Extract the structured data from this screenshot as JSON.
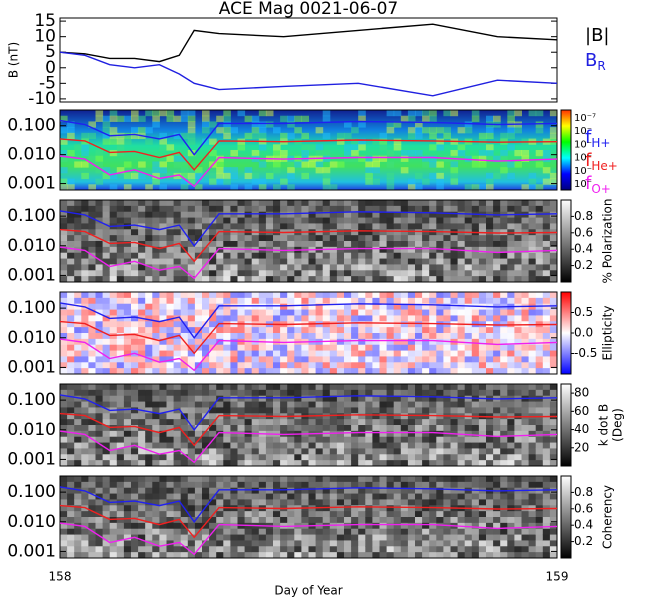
{
  "chart_data": [
    {
      "type": "line",
      "title": "ACE Mag 0021-06-07",
      "ylabel": "B (nT)",
      "xlim": [
        158,
        159
      ],
      "ylim": [
        -11,
        16
      ],
      "yticks": [
        15,
        10,
        5,
        0,
        -5,
        -10
      ],
      "series": [
        {
          "name": "|B|",
          "color": "#000000",
          "x": [
            158,
            158.05,
            158.1,
            158.15,
            158.2,
            158.24,
            158.27,
            158.32,
            158.45,
            158.6,
            158.75,
            158.88,
            159
          ],
          "values": [
            5,
            4.5,
            3,
            3,
            2,
            4,
            12,
            11,
            10,
            12,
            14,
            10,
            9
          ]
        },
        {
          "name": "B",
          "sub": "R",
          "color": "#2020e0",
          "x": [
            158,
            158.05,
            158.1,
            158.15,
            158.2,
            158.24,
            158.27,
            158.32,
            158.45,
            158.6,
            158.75,
            158.88,
            159
          ],
          "values": [
            5,
            4,
            1,
            0,
            1,
            -2,
            -5,
            -7,
            -6,
            -5,
            -9,
            -4,
            -5
          ]
        }
      ]
    },
    {
      "type": "line",
      "background": "spectrum",
      "colormap": "spectrum",
      "colorbar_labels": [
        "10⁻⁷",
        "10⁻",
        "10⁻",
        "10⁻",
        "10⁻",
        "10⁻"
      ],
      "log": true,
      "xlim": [
        158,
        159
      ],
      "ylim": [
        0.0006,
        0.35
      ],
      "yticks": [
        {
          "value": 0.1,
          "label": "0.100"
        },
        {
          "value": 0.01,
          "label": "0.010"
        },
        {
          "value": 0.001,
          "label": "0.001"
        }
      ],
      "series": [
        {
          "name": "f",
          "sub": "H+",
          "color": "#2020f0",
          "x": [
            158,
            158.05,
            158.1,
            158.15,
            158.2,
            158.24,
            158.27,
            158.32,
            158.45,
            158.6,
            158.75,
            158.88,
            159
          ],
          "values": [
            0.15,
            0.11,
            0.045,
            0.05,
            0.035,
            0.05,
            0.01,
            0.12,
            0.12,
            0.14,
            0.13,
            0.11,
            0.12
          ]
        },
        {
          "name": "f",
          "sub": "He+",
          "color": "#f02020",
          "x": [
            158,
            158.05,
            158.1,
            158.15,
            158.2,
            158.24,
            158.27,
            158.32,
            158.45,
            158.6,
            158.75,
            158.88,
            159
          ],
          "values": [
            0.035,
            0.03,
            0.012,
            0.013,
            0.008,
            0.012,
            0.003,
            0.03,
            0.028,
            0.032,
            0.03,
            0.027,
            0.028
          ]
        },
        {
          "name": "f",
          "sub": "O+",
          "color": "#f020f0",
          "x": [
            158,
            158.05,
            158.1,
            158.15,
            158.2,
            158.24,
            158.27,
            158.32,
            158.45,
            158.6,
            158.75,
            158.88,
            159
          ],
          "values": [
            0.009,
            0.007,
            0.002,
            0.003,
            0.0015,
            0.002,
            0.0008,
            0.008,
            0.007,
            0.008,
            0.008,
            0.006,
            0.007
          ]
        }
      ]
    },
    {
      "type": "line",
      "background": "gray",
      "colormap": "gray",
      "colorbar_title": "% Polarization",
      "clim": [
        0,
        1
      ],
      "cticks": [
        0.2,
        0.4,
        0.6,
        0.8
      ],
      "log": true,
      "xlim": [
        158,
        159
      ],
      "ylim": [
        0.0006,
        0.35
      ],
      "yticks": [
        {
          "value": 0.1,
          "label": "0.100"
        },
        {
          "value": 0.01,
          "label": "0.010"
        },
        {
          "value": 0.001,
          "label": "0.001"
        }
      ],
      "series": [
        {
          "color": "#2020f0",
          "x": [
            158,
            158.05,
            158.1,
            158.15,
            158.2,
            158.24,
            158.27,
            158.32,
            158.45,
            158.6,
            158.75,
            158.88,
            159
          ],
          "values": [
            0.15,
            0.11,
            0.045,
            0.05,
            0.035,
            0.05,
            0.01,
            0.12,
            0.12,
            0.14,
            0.13,
            0.11,
            0.12
          ]
        },
        {
          "color": "#f02020",
          "x": [
            158,
            158.05,
            158.1,
            158.15,
            158.2,
            158.24,
            158.27,
            158.32,
            158.45,
            158.6,
            158.75,
            158.88,
            159
          ],
          "values": [
            0.035,
            0.03,
            0.012,
            0.013,
            0.008,
            0.012,
            0.003,
            0.03,
            0.028,
            0.032,
            0.03,
            0.027,
            0.028
          ]
        },
        {
          "color": "#f020f0",
          "x": [
            158,
            158.05,
            158.1,
            158.15,
            158.2,
            158.24,
            158.27,
            158.32,
            158.45,
            158.6,
            158.75,
            158.88,
            159
          ],
          "values": [
            0.009,
            0.007,
            0.002,
            0.003,
            0.0015,
            0.002,
            0.0008,
            0.008,
            0.007,
            0.008,
            0.008,
            0.006,
            0.007
          ]
        }
      ]
    },
    {
      "type": "line",
      "background": "redblue",
      "colormap": "redblue",
      "colorbar_title": "Ellipticity",
      "clim": [
        -1,
        1
      ],
      "cticks": [
        0.5,
        {
          "value": 0,
          "label": "0.0"
        },
        -0.5
      ],
      "log": true,
      "xlim": [
        158,
        159
      ],
      "ylim": [
        0.0006,
        0.35
      ],
      "yticks": [
        {
          "value": 0.1,
          "label": "0.100"
        },
        {
          "value": 0.01,
          "label": "0.010"
        },
        {
          "value": 0.001,
          "label": "0.001"
        }
      ],
      "series": [
        {
          "color": "#2020f0",
          "x": [
            158,
            158.05,
            158.1,
            158.15,
            158.2,
            158.24,
            158.27,
            158.32,
            158.45,
            158.6,
            158.75,
            158.88,
            159
          ],
          "values": [
            0.15,
            0.11,
            0.045,
            0.05,
            0.035,
            0.05,
            0.01,
            0.12,
            0.12,
            0.14,
            0.13,
            0.11,
            0.12
          ]
        },
        {
          "color": "#f02020",
          "x": [
            158,
            158.05,
            158.1,
            158.15,
            158.2,
            158.24,
            158.27,
            158.32,
            158.45,
            158.6,
            158.75,
            158.88,
            159
          ],
          "values": [
            0.035,
            0.03,
            0.012,
            0.013,
            0.008,
            0.012,
            0.003,
            0.03,
            0.028,
            0.032,
            0.03,
            0.027,
            0.028
          ]
        },
        {
          "color": "#f020f0",
          "x": [
            158,
            158.05,
            158.1,
            158.15,
            158.2,
            158.24,
            158.27,
            158.32,
            158.45,
            158.6,
            158.75,
            158.88,
            159
          ],
          "values": [
            0.009,
            0.007,
            0.002,
            0.003,
            0.0015,
            0.002,
            0.0008,
            0.008,
            0.007,
            0.008,
            0.008,
            0.006,
            0.007
          ]
        }
      ]
    },
    {
      "type": "line",
      "background": "gray",
      "colormap": "gray",
      "colorbar_title": "k dot B",
      "colorbar_subtitle": "(Deg)",
      "clim": [
        0,
        90
      ],
      "cticks": [
        80,
        60,
        40,
        20
      ],
      "log": true,
      "xlim": [
        158,
        159
      ],
      "ylim": [
        0.0006,
        0.35
      ],
      "yticks": [
        {
          "value": 0.1,
          "label": "0.100"
        },
        {
          "value": 0.01,
          "label": "0.010"
        },
        {
          "value": 0.001,
          "label": "0.001"
        }
      ],
      "series": [
        {
          "color": "#2020f0",
          "x": [
            158,
            158.05,
            158.1,
            158.15,
            158.2,
            158.24,
            158.27,
            158.32,
            158.45,
            158.6,
            158.75,
            158.88,
            159
          ],
          "values": [
            0.15,
            0.11,
            0.045,
            0.05,
            0.035,
            0.05,
            0.01,
            0.12,
            0.12,
            0.14,
            0.13,
            0.11,
            0.12
          ]
        },
        {
          "color": "#f02020",
          "x": [
            158,
            158.05,
            158.1,
            158.15,
            158.2,
            158.24,
            158.27,
            158.32,
            158.45,
            158.6,
            158.75,
            158.88,
            159
          ],
          "values": [
            0.035,
            0.03,
            0.012,
            0.013,
            0.008,
            0.012,
            0.003,
            0.03,
            0.028,
            0.032,
            0.03,
            0.027,
            0.028
          ]
        },
        {
          "color": "#f020f0",
          "x": [
            158,
            158.05,
            158.1,
            158.15,
            158.2,
            158.24,
            158.27,
            158.32,
            158.45,
            158.6,
            158.75,
            158.88,
            159
          ],
          "values": [
            0.009,
            0.007,
            0.002,
            0.003,
            0.0015,
            0.002,
            0.0008,
            0.008,
            0.007,
            0.008,
            0.008,
            0.006,
            0.007
          ]
        }
      ]
    },
    {
      "type": "line",
      "background": "gray",
      "colormap": "gray",
      "colorbar_title": "Coherency",
      "clim": [
        0,
        1
      ],
      "cticks": [
        0.2,
        0.4,
        0.6,
        0.8
      ],
      "log": true,
      "xlim": [
        158,
        159
      ],
      "xticks": [
        158,
        159
      ],
      "xlabel": "Day of Year",
      "ylim": [
        0.0006,
        0.35
      ],
      "yticks": [
        {
          "value": 0.1,
          "label": "0.100"
        },
        {
          "value": 0.01,
          "label": "0.010"
        },
        {
          "value": 0.001,
          "label": "0.001"
        }
      ],
      "series": [
        {
          "color": "#2020f0",
          "x": [
            158,
            158.05,
            158.1,
            158.15,
            158.2,
            158.24,
            158.27,
            158.32,
            158.45,
            158.6,
            158.75,
            158.88,
            159
          ],
          "values": [
            0.15,
            0.11,
            0.045,
            0.05,
            0.035,
            0.05,
            0.01,
            0.12,
            0.12,
            0.14,
            0.13,
            0.11,
            0.12
          ]
        },
        {
          "color": "#f02020",
          "x": [
            158,
            158.05,
            158.1,
            158.15,
            158.2,
            158.24,
            158.27,
            158.32,
            158.45,
            158.6,
            158.75,
            158.88,
            159
          ],
          "values": [
            0.035,
            0.03,
            0.012,
            0.013,
            0.008,
            0.012,
            0.003,
            0.03,
            0.028,
            0.032,
            0.03,
            0.027,
            0.028
          ]
        },
        {
          "color": "#f020f0",
          "x": [
            158,
            158.05,
            158.1,
            158.15,
            158.2,
            158.24,
            158.27,
            158.32,
            158.45,
            158.6,
            158.75,
            158.88,
            159
          ],
          "values": [
            0.009,
            0.007,
            0.002,
            0.003,
            0.0015,
            0.002,
            0.0008,
            0.008,
            0.007,
            0.008,
            0.008,
            0.006,
            0.007
          ]
        }
      ]
    }
  ]
}
